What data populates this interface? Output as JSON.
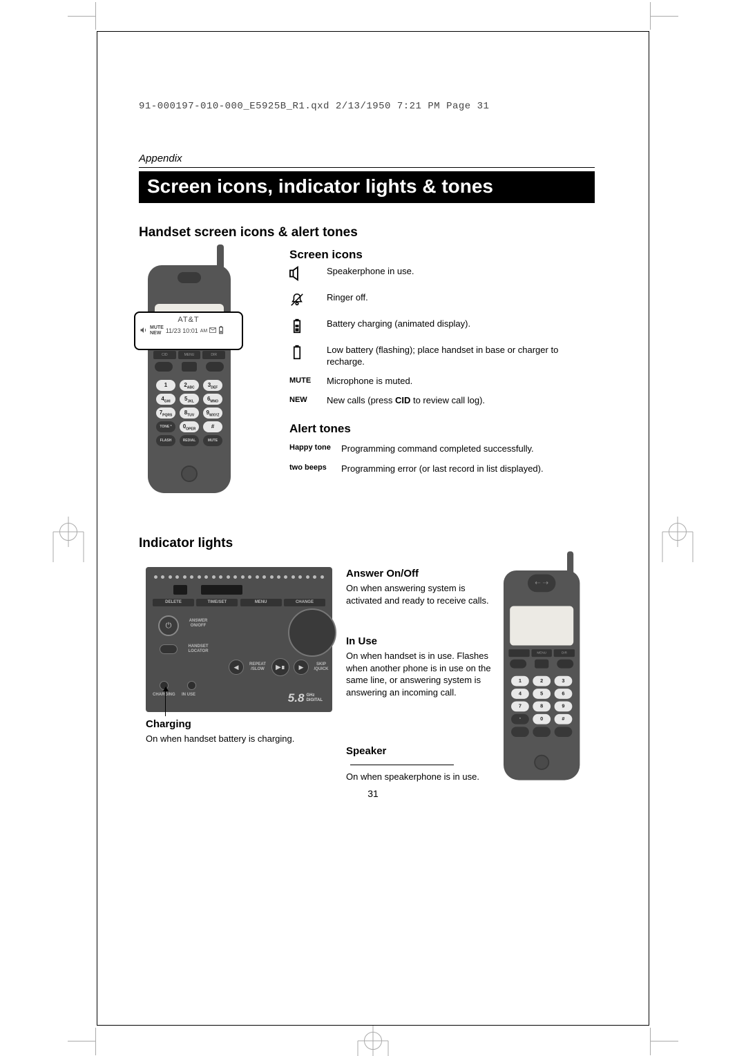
{
  "header": "91-000197-010-000_E5925B_R1.qxd  2/13/1950  7:21 PM  Page 31",
  "section": "Appendix",
  "title": "Screen icons, indicator lights & tones",
  "h_handset": "Handset screen icons & alert tones",
  "h_screen_icons": "Screen icons",
  "h_alert": "Alert tones",
  "h_indicator": "Indicator lights",
  "screen_callout": {
    "line1": "AT&T",
    "mute": "MUTE",
    "new": "NEW",
    "date": "11/23 10:01",
    "ampm": "AM"
  },
  "icons": [
    {
      "type": "svg",
      "id": "speaker",
      "desc": "Speakerphone in use."
    },
    {
      "type": "svg",
      "id": "ringer",
      "desc": "Ringer off."
    },
    {
      "type": "svg",
      "id": "batt-charge",
      "desc": "Battery charging (animated display)."
    },
    {
      "type": "svg",
      "id": "batt-low",
      "desc": "Low battery (flashing); place handset in base or charger to recharge."
    },
    {
      "type": "text",
      "label": "MUTE",
      "desc": "Microphone is muted."
    },
    {
      "type": "text",
      "label": "NEW",
      "desc_html": "New calls (press <b>CID</b> to review call log)."
    }
  ],
  "alerts": [
    {
      "label": "Happy tone",
      "desc": "Programming command completed successfully."
    },
    {
      "label": "two beeps",
      "desc": "Programming error (or last record in list displayed)."
    }
  ],
  "base_labels": {
    "delete": "DELETE",
    "timeset": "TIME/SET",
    "menu": "MENU",
    "change": "CHANGE",
    "answer": "ANSWER\nON/OFF",
    "handset": "HANDSET\nLOCATOR",
    "repeat": "REPEAT\n/SLOW",
    "skip": "SKIP\n/QUICK",
    "charging": "CHARGING",
    "inuse": "IN USE",
    "brand": "5.8",
    "brand2": "GHz\nDIGITAL"
  },
  "ind": {
    "answer_h": "Answer On/Off",
    "answer_t": "On when answering system is activated and ready to receive calls.",
    "inuse_h": "In Use",
    "inuse_t": "On when handset is in use. Flashes when another phone is in use on the same line, or answering system is answering an incoming call.",
    "charging_h": "Charging",
    "charging_t": "On when handset battery is charging.",
    "speaker_h": "Speaker",
    "speaker_t": "On when speakerphone is in use."
  },
  "page_num": "31",
  "colors": {
    "handset_body": "#555555",
    "base_body": "#4e4e4e",
    "key_light": "#e8e8e8",
    "screen_bg": "#eceae4"
  }
}
